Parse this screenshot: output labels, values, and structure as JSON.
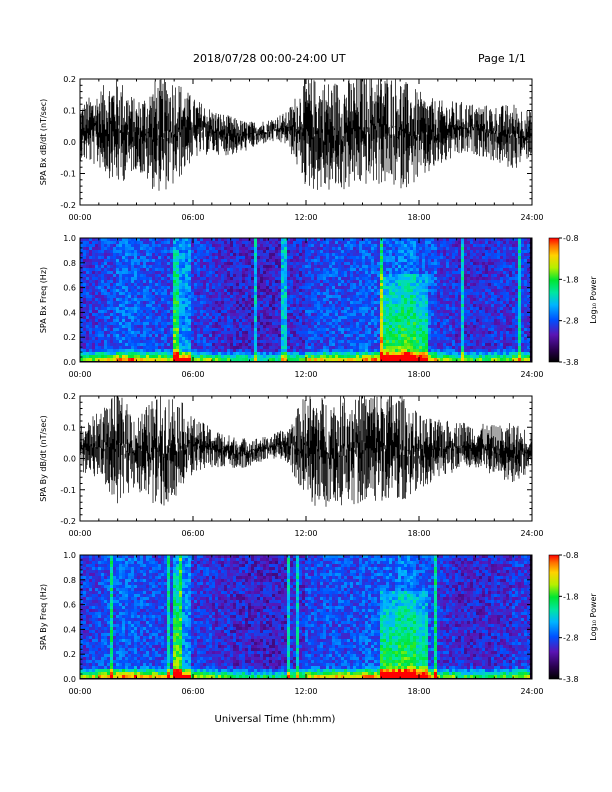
{
  "header": {
    "title": "2018/07/28  00:00-24:00 UT",
    "page": "Page 1/1"
  },
  "colorbar": {
    "label": "Log₁₀ Power",
    "ticks": [
      "-0.8",
      "-1.8",
      "-2.8",
      "-3.8"
    ]
  },
  "chart_data": [
    {
      "type": "line",
      "ylabel": "SPA Bx dB/dt (nT/sec)",
      "xlabel": "",
      "xticks": [
        "00:00",
        "06:00",
        "12:00",
        "18:00",
        "24:00"
      ],
      "yticks": [
        "0.2",
        "0.1",
        "0.0",
        "-0.1",
        "-0.2"
      ],
      "ylim": [
        -0.2,
        0.2
      ],
      "xlim_hours": [
        0,
        24
      ],
      "series": [
        {
          "x": [
            0,
            1,
            2,
            3,
            4,
            5,
            6,
            7,
            8,
            9,
            10,
            11,
            12,
            13,
            14,
            15,
            16,
            17,
            18,
            19,
            20,
            21,
            22,
            23,
            24
          ],
          "values": [
            0.1,
            0.14,
            0.2,
            0.12,
            0.2,
            0.2,
            0.11,
            0.08,
            0.07,
            0.05,
            0.04,
            0.06,
            0.2,
            0.2,
            0.2,
            0.2,
            0.2,
            0.2,
            0.16,
            0.12,
            0.1,
            0.09,
            0.1,
            0.12,
            0.08
          ]
        }
      ]
    },
    {
      "type": "heatmap",
      "ylabel": "SPA Bx Freq (Hz)",
      "xlabel": "",
      "xticks": [
        "00:00",
        "06:00",
        "12:00",
        "18:00",
        "24:00"
      ],
      "yticks": [
        "1.0",
        "0.8",
        "0.6",
        "0.4",
        "0.2",
        "0.0"
      ],
      "ylim": [
        0.0,
        1.0
      ],
      "xlim_hours": [
        0,
        24
      ],
      "colorscale_range": [
        -3.8,
        -0.8
      ],
      "activity_by_hour": [
        0.45,
        0.55,
        0.7,
        0.6,
        0.55,
        0.95,
        0.45,
        0.35,
        0.3,
        0.25,
        0.25,
        0.35,
        0.55,
        0.6,
        0.6,
        0.65,
        0.7,
        0.85,
        0.65,
        0.45,
        0.35,
        0.35,
        0.4,
        0.45
      ],
      "enhanced_bands": [
        {
          "hours": [
            5.0,
            5.3
          ],
          "freq_max": 0.9
        },
        {
          "hours": [
            16.0,
            18.5
          ],
          "freq_max": 0.7
        }
      ]
    },
    {
      "type": "line",
      "ylabel": "SPA By dB/dt (nT/sec)",
      "xlabel": "",
      "xticks": [
        "00:00",
        "06:00",
        "12:00",
        "18:00",
        "24:00"
      ],
      "yticks": [
        "0.2",
        "0.1",
        "0.0",
        "-0.1",
        "-0.2"
      ],
      "ylim": [
        -0.2,
        0.2
      ],
      "xlim_hours": [
        0,
        24
      ],
      "series": [
        {
          "x": [
            0,
            1,
            2,
            3,
            4,
            5,
            6,
            7,
            8,
            9,
            10,
            11,
            12,
            13,
            14,
            15,
            16,
            17,
            18,
            19,
            20,
            21,
            22,
            23,
            24
          ],
          "values": [
            0.08,
            0.12,
            0.2,
            0.13,
            0.2,
            0.2,
            0.1,
            0.07,
            0.06,
            0.05,
            0.04,
            0.06,
            0.2,
            0.2,
            0.2,
            0.2,
            0.2,
            0.2,
            0.14,
            0.11,
            0.09,
            0.08,
            0.09,
            0.11,
            0.07
          ]
        }
      ]
    },
    {
      "type": "heatmap",
      "ylabel": "SPA By Freq (Hz)",
      "xlabel": "Universal Time (hh:mm)",
      "xticks": [
        "00:00",
        "06:00",
        "12:00",
        "18:00",
        "24:00"
      ],
      "yticks": [
        "1.0",
        "0.8",
        "0.6",
        "0.4",
        "0.2",
        "0.0"
      ],
      "ylim": [
        0.0,
        1.0
      ],
      "xlim_hours": [
        0,
        24
      ],
      "colorscale_range": [
        -3.8,
        -0.8
      ],
      "activity_by_hour": [
        0.5,
        0.6,
        0.7,
        0.6,
        0.55,
        0.95,
        0.45,
        0.35,
        0.3,
        0.25,
        0.25,
        0.35,
        0.55,
        0.6,
        0.6,
        0.65,
        0.7,
        0.85,
        0.6,
        0.4,
        0.3,
        0.3,
        0.35,
        0.45
      ],
      "enhanced_bands": [
        {
          "hours": [
            5.0,
            5.3
          ],
          "freq_max": 0.9
        },
        {
          "hours": [
            16.0,
            18.5
          ],
          "freq_max": 0.7
        }
      ]
    }
  ]
}
